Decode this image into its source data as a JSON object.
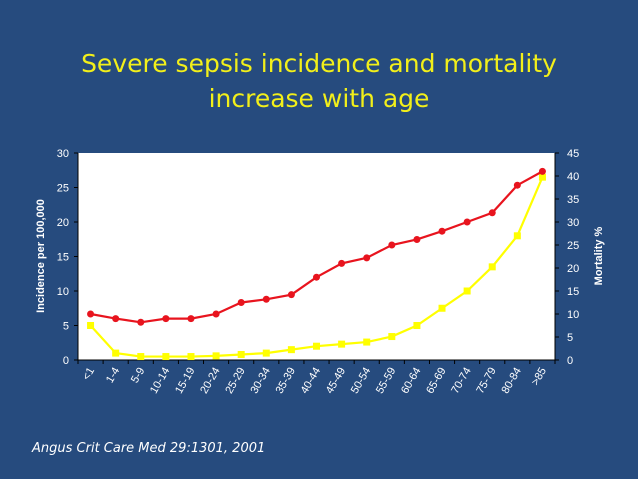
{
  "slide": {
    "title_line1": "Severe sepsis incidence and mortality",
    "title_line2": "increase with age",
    "citation": "Angus Crit Care Med 29:1301, 2001",
    "colors": {
      "background": "#264b7e",
      "title": "#f2ef1a",
      "incidence": "#ffff00",
      "mortality": "#e8141e",
      "text": "#ffffff"
    }
  },
  "chart_data": {
    "type": "line",
    "title": "",
    "xlabel": "",
    "ylabel": "Incidence per 100,000",
    "y2label": "Mortality %",
    "categories": [
      "<1",
      "1-4",
      "5-9",
      "10-14",
      "15-19",
      "20-24",
      "25-29",
      "30-34",
      "35-39",
      "40-44",
      "45-49",
      "50-54",
      "55-59",
      "60-64",
      "65-69",
      "70-74",
      "75-79",
      "80-84",
      ">85"
    ],
    "ylim": [
      0,
      30
    ],
    "yticks": [
      0,
      5,
      10,
      15,
      20,
      25,
      30
    ],
    "y2lim": [
      0,
      45
    ],
    "y2ticks": [
      0,
      5,
      10,
      15,
      20,
      25,
      30,
      35,
      40,
      45
    ],
    "grid": false,
    "series": [
      {
        "name": "Incidence",
        "axis": "left",
        "marker": "square",
        "values": [
          5,
          1,
          0.5,
          0.5,
          0.5,
          0.6,
          0.8,
          1,
          1.5,
          2,
          2.3,
          2.6,
          3.4,
          5,
          7.5,
          10,
          13.5,
          18,
          26.5
        ]
      },
      {
        "name": "Mortality",
        "axis": "right",
        "marker": "circle",
        "values": [
          10,
          9,
          8.2,
          9,
          9,
          10,
          12.5,
          13.2,
          14.2,
          18,
          21,
          22.2,
          25,
          26.2,
          28,
          30,
          32,
          38,
          41
        ]
      }
    ]
  }
}
